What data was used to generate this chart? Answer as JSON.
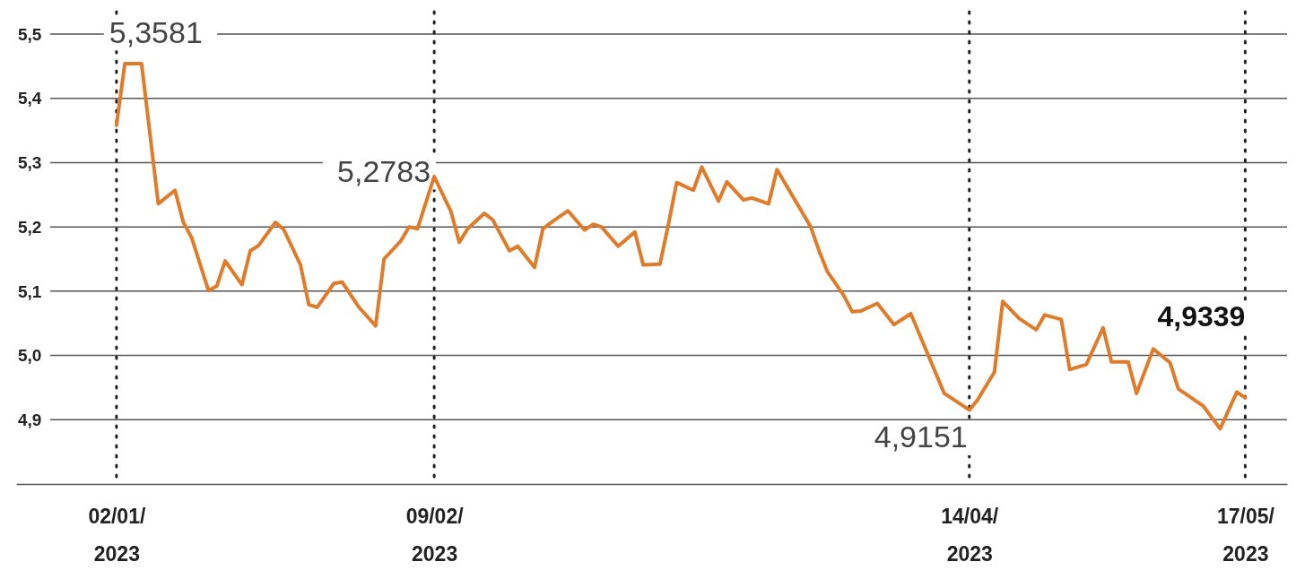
{
  "chart_data": {
    "type": "line",
    "x": [
      "2023-01-02",
      "2023-01-03",
      "2023-01-05",
      "2023-01-07",
      "2023-01-09",
      "2023-01-10",
      "2023-01-11",
      "2023-01-13",
      "2023-01-14",
      "2023-01-15",
      "2023-01-17",
      "2023-01-18",
      "2023-01-19",
      "2023-01-21",
      "2023-01-22",
      "2023-01-24",
      "2023-01-25",
      "2023-01-26",
      "2023-01-28",
      "2023-01-29",
      "2023-01-31",
      "2023-02-02",
      "2023-02-03",
      "2023-02-05",
      "2023-02-06",
      "2023-02-07",
      "2023-02-09",
      "2023-02-11",
      "2023-02-12",
      "2023-02-13",
      "2023-02-15",
      "2023-02-16",
      "2023-02-18",
      "2023-02-19",
      "2023-02-21",
      "2023-02-22",
      "2023-02-23",
      "2023-02-25",
      "2023-02-27",
      "2023-02-28",
      "2023-03-01",
      "2023-03-03",
      "2023-03-05",
      "2023-03-06",
      "2023-03-08",
      "2023-03-09",
      "2023-03-10",
      "2023-03-12",
      "2023-03-13",
      "2023-03-15",
      "2023-03-16",
      "2023-03-18",
      "2023-03-19",
      "2023-03-21",
      "2023-03-22",
      "2023-03-24",
      "2023-03-26",
      "2023-03-27",
      "2023-03-28",
      "2023-03-30",
      "2023-03-31",
      "2023-04-01",
      "2023-04-03",
      "2023-04-05",
      "2023-04-07",
      "2023-04-11",
      "2023-04-14",
      "2023-04-15",
      "2023-04-17",
      "2023-04-18",
      "2023-04-20",
      "2023-04-22",
      "2023-04-23",
      "2023-04-25",
      "2023-04-26",
      "2023-04-28",
      "2023-04-30",
      "2023-05-01",
      "2023-05-03",
      "2023-05-04",
      "2023-05-06",
      "2023-05-08",
      "2023-05-09",
      "2023-05-12",
      "2023-05-14",
      "2023-05-16",
      "2023-05-17"
    ],
    "series": [
      {
        "color": "#e07b2a",
        "values": [
          5.3581,
          5.454,
          5.454,
          5.236,
          5.257,
          5.207,
          5.183,
          5.101,
          5.108,
          5.147,
          5.11,
          5.163,
          5.171,
          5.207,
          5.196,
          5.141,
          5.079,
          5.075,
          5.112,
          5.114,
          5.075,
          5.046,
          5.15,
          5.178,
          5.2,
          5.197,
          5.2783,
          5.224,
          5.176,
          5.197,
          5.221,
          5.211,
          5.163,
          5.17,
          5.137,
          5.197,
          5.207,
          5.225,
          5.195,
          5.204,
          5.2,
          5.17,
          5.192,
          5.141,
          5.142,
          5.203,
          5.269,
          5.257,
          5.293,
          5.24,
          5.27,
          5.242,
          5.245,
          5.236,
          5.289,
          5.245,
          5.201,
          5.164,
          5.131,
          5.093,
          5.068,
          5.069,
          5.081,
          5.048,
          5.065,
          4.941,
          4.9151,
          4.931,
          4.974,
          5.084,
          5.057,
          5.04,
          5.063,
          5.056,
          4.978,
          4.986,
          5.043,
          4.99,
          4.99,
          4.941,
          5.01,
          4.989,
          4.948,
          4.921,
          4.886,
          4.943,
          4.9339
        ]
      }
    ],
    "xlim": [
      "2022-12-21",
      "2023-05-22"
    ],
    "xticks": [
      {
        "value": "2023-01-02",
        "label": "02/01/\n2023"
      },
      {
        "value": "2023-02-09",
        "label": "09/02/\n2023"
      },
      {
        "value": "2023-04-14",
        "label": "14/04/\n2023"
      },
      {
        "value": "2023-05-17",
        "label": "17/05/\n2023"
      }
    ],
    "ylim": [
      4.8,
      5.5
    ],
    "yticks": [
      {
        "value": 4.9,
        "label": "4,9"
      },
      {
        "value": 5.0,
        "label": "5,0"
      },
      {
        "value": 5.1,
        "label": "5,1"
      },
      {
        "value": 5.2,
        "label": "5,2"
      },
      {
        "value": 5.3,
        "label": "5,3"
      },
      {
        "value": 5.4,
        "label": "5,4"
      },
      {
        "value": 5.5,
        "label": "5,5"
      }
    ],
    "grid": "y",
    "line_style": "solid",
    "ref_lines": [
      {
        "axis": "x",
        "value": "2023-01-02",
        "line_style": "dotted",
        "color": "#222222"
      },
      {
        "axis": "x",
        "value": "2023-02-09",
        "line_style": "dotted",
        "color": "#222222"
      },
      {
        "axis": "x",
        "value": "2023-04-14",
        "line_style": "dotted",
        "color": "#222222"
      },
      {
        "axis": "x",
        "value": "2023-05-17",
        "line_style": "dotted",
        "color": "#222222"
      }
    ],
    "annotations": [
      {
        "text": "5,3581",
        "x": "2023-01-02",
        "y": 5.3581
      },
      {
        "text": "5,2783",
        "x": "2023-02-09",
        "y": 5.2783
      },
      {
        "text": "4,9151",
        "x": "2023-04-14",
        "y": 4.9151
      },
      {
        "text": "4,9339",
        "x": "2023-05-17",
        "y": 4.9339
      }
    ]
  }
}
